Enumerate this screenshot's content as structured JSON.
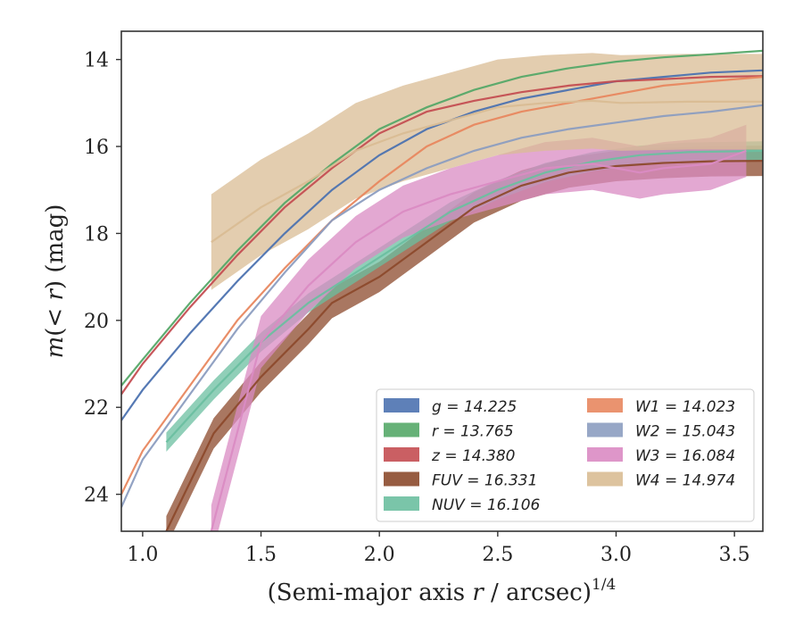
{
  "chart_data": {
    "type": "line",
    "xlabel_main": "(Semi-major axis ",
    "xlabel_var": "r",
    "xlabel_rest": " / arcsec)",
    "xlabel_sup": "1/4",
    "ylabel_m": "m",
    "ylabel_mid": "(< ",
    "ylabel_r": "r",
    "ylabel_end": ") (mag)",
    "xlim": [
      0.91,
      3.62
    ],
    "ylim": [
      24.85,
      13.35
    ],
    "y_inverted": true,
    "xticks": [
      1.0,
      1.5,
      2.0,
      2.5,
      3.0,
      3.5
    ],
    "xtick_labels": [
      "1.0",
      "1.5",
      "2.0",
      "2.5",
      "3.0",
      "3.5"
    ],
    "yticks": [
      14,
      16,
      18,
      20,
      22,
      24
    ],
    "ytick_labels": [
      "14",
      "16",
      "18",
      "20",
      "22",
      "24"
    ],
    "legend_position": "lower-right",
    "legend_columns": 2,
    "series": [
      {
        "name": "g = 14.225",
        "color": "#4c72b0",
        "points": [
          [
            0.91,
            22.3
          ],
          [
            1.0,
            21.6
          ],
          [
            1.2,
            20.3
          ],
          [
            1.4,
            19.1
          ],
          [
            1.6,
            18.0
          ],
          [
            1.8,
            17.0
          ],
          [
            2.0,
            16.2
          ],
          [
            2.2,
            15.6
          ],
          [
            2.4,
            15.2
          ],
          [
            2.6,
            14.9
          ],
          [
            2.8,
            14.7
          ],
          [
            3.0,
            14.5
          ],
          [
            3.2,
            14.4
          ],
          [
            3.4,
            14.3
          ],
          [
            3.62,
            14.25
          ]
        ]
      },
      {
        "name": "r = 13.765",
        "color": "#55a868",
        "points": [
          [
            0.91,
            21.5
          ],
          [
            1.0,
            20.9
          ],
          [
            1.2,
            19.6
          ],
          [
            1.4,
            18.4
          ],
          [
            1.6,
            17.3
          ],
          [
            1.8,
            16.4
          ],
          [
            2.0,
            15.6
          ],
          [
            2.2,
            15.1
          ],
          [
            2.4,
            14.7
          ],
          [
            2.6,
            14.4
          ],
          [
            2.8,
            14.2
          ],
          [
            3.0,
            14.05
          ],
          [
            3.2,
            13.95
          ],
          [
            3.4,
            13.88
          ],
          [
            3.62,
            13.8
          ]
        ]
      },
      {
        "name": "z = 14.380",
        "color": "#c44e52",
        "points": [
          [
            0.91,
            21.7
          ],
          [
            1.0,
            21.0
          ],
          [
            1.2,
            19.7
          ],
          [
            1.4,
            18.5
          ],
          [
            1.6,
            17.4
          ],
          [
            1.8,
            16.5
          ],
          [
            2.0,
            15.7
          ],
          [
            2.2,
            15.2
          ],
          [
            2.4,
            14.95
          ],
          [
            2.6,
            14.75
          ],
          [
            2.8,
            14.6
          ],
          [
            3.0,
            14.5
          ],
          [
            3.2,
            14.45
          ],
          [
            3.4,
            14.4
          ],
          [
            3.62,
            14.38
          ]
        ]
      },
      {
        "name": "FUV = 16.331",
        "color": "#8c4a2c",
        "points": [
          [
            1.1,
            24.85
          ],
          [
            1.3,
            22.6
          ],
          [
            1.5,
            21.3
          ],
          [
            1.7,
            20.2
          ],
          [
            1.8,
            19.6
          ],
          [
            2.0,
            19.0
          ],
          [
            2.2,
            18.2
          ],
          [
            2.4,
            17.4
          ],
          [
            2.6,
            16.9
          ],
          [
            2.8,
            16.6
          ],
          [
            3.0,
            16.45
          ],
          [
            3.2,
            16.38
          ],
          [
            3.4,
            16.34
          ],
          [
            3.62,
            16.33
          ]
        ]
      },
      {
        "name": "NUV = 16.106",
        "color": "#6bbfa0",
        "points": [
          [
            1.1,
            22.8
          ],
          [
            1.3,
            21.6
          ],
          [
            1.5,
            20.5
          ],
          [
            1.7,
            19.6
          ],
          [
            1.9,
            18.9
          ],
          [
            2.1,
            18.2
          ],
          [
            2.3,
            17.5
          ],
          [
            2.5,
            17.0
          ],
          [
            2.7,
            16.6
          ],
          [
            2.9,
            16.35
          ],
          [
            3.1,
            16.2
          ],
          [
            3.3,
            16.13
          ],
          [
            3.62,
            16.1
          ]
        ]
      },
      {
        "name": "W1 = 14.023",
        "color": "#e8875f",
        "points": [
          [
            0.91,
            24.0
          ],
          [
            1.0,
            23.0
          ],
          [
            1.2,
            21.5
          ],
          [
            1.4,
            20.0
          ],
          [
            1.6,
            18.8
          ],
          [
            1.8,
            17.7
          ],
          [
            2.0,
            16.8
          ],
          [
            2.2,
            16.0
          ],
          [
            2.4,
            15.5
          ],
          [
            2.6,
            15.2
          ],
          [
            2.8,
            15.0
          ],
          [
            3.0,
            14.8
          ],
          [
            3.2,
            14.6
          ],
          [
            3.4,
            14.5
          ],
          [
            3.62,
            14.4
          ]
        ]
      },
      {
        "name": "W2 = 15.043",
        "color": "#8c9dc0",
        "points": [
          [
            0.91,
            24.3
          ],
          [
            1.0,
            23.2
          ],
          [
            1.2,
            21.7
          ],
          [
            1.4,
            20.2
          ],
          [
            1.6,
            18.9
          ],
          [
            1.8,
            17.7
          ],
          [
            2.0,
            17.0
          ],
          [
            2.2,
            16.5
          ],
          [
            2.4,
            16.1
          ],
          [
            2.6,
            15.8
          ],
          [
            2.8,
            15.6
          ],
          [
            3.0,
            15.45
          ],
          [
            3.2,
            15.3
          ],
          [
            3.4,
            15.2
          ],
          [
            3.62,
            15.05
          ]
        ]
      },
      {
        "name": "W3 = 16.084",
        "color": "#da8bc3",
        "points": [
          [
            1.29,
            24.85
          ],
          [
            1.5,
            20.5
          ],
          [
            1.7,
            19.2
          ],
          [
            1.9,
            18.2
          ],
          [
            2.1,
            17.5
          ],
          [
            2.3,
            17.1
          ],
          [
            2.5,
            16.8
          ],
          [
            2.7,
            16.5
          ],
          [
            2.9,
            16.4
          ],
          [
            3.0,
            16.5
          ],
          [
            3.1,
            16.6
          ],
          [
            3.2,
            16.5
          ],
          [
            3.4,
            16.4
          ],
          [
            3.55,
            16.1
          ]
        ]
      },
      {
        "name": "W4 = 14.974",
        "color": "#d9bc94",
        "points": [
          [
            1.29,
            18.2
          ],
          [
            1.5,
            17.4
          ],
          [
            1.7,
            16.8
          ],
          [
            1.9,
            16.1
          ],
          [
            2.1,
            15.7
          ],
          [
            2.3,
            15.4
          ],
          [
            2.5,
            15.1
          ],
          [
            2.7,
            15.0
          ],
          [
            2.9,
            14.95
          ],
          [
            3.02,
            15.0
          ],
          [
            3.3,
            14.97
          ],
          [
            3.62,
            14.97
          ]
        ]
      }
    ]
  }
}
